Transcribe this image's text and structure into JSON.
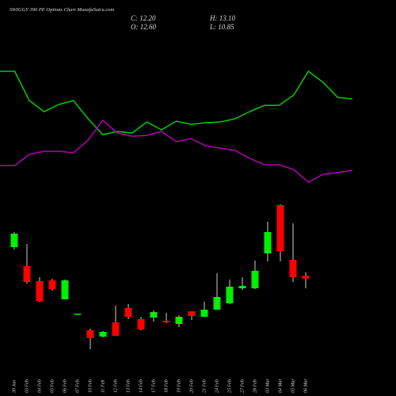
{
  "chart_data": [
    {
      "type": "candlestick",
      "title": "SWIGGY 390 PE Options Chart MunafaSutra.com",
      "ohlc_text": [
        "C: 12.20",
        "H: 13.10",
        "O: 12.60",
        "L: 10.85"
      ],
      "categories": [
        "30 Jan",
        "03 Feb",
        "04 Feb",
        "05 Feb",
        "06 Feb",
        "07 Feb",
        "10 Feb",
        "11 Feb",
        "12 Feb",
        "13 Feb",
        "14 Feb",
        "17 Feb",
        "18 Feb",
        "19 Feb",
        "20 Feb",
        "21 Feb",
        "24 Feb",
        "25 Feb",
        "27 Feb",
        "28 Feb",
        "03 Mar",
        "04 Mar",
        "05 Mar",
        "06 Mar"
      ],
      "open": [
        16.58,
        13.94,
        11.85,
        11.96,
        9.32,
        7.23,
        5.03,
        4.15,
        6.13,
        8.11,
        6.57,
        6.79,
        6.35,
        5.91,
        7.67,
        6.9,
        7.89,
        8.77,
        10.86,
        10.86,
        15.7,
        22.41,
        14.82,
        12.6
      ],
      "high": [
        18.67,
        17.02,
        12.4,
        12.18,
        12.07,
        7.34,
        5.25,
        4.92,
        8.44,
        8.66,
        6.9,
        7.78,
        7.45,
        7.12,
        7.67,
        8.99,
        12.95,
        12.07,
        12.4,
        14.71,
        20.1,
        22.52,
        19.88,
        13.1
      ],
      "low": [
        16.25,
        11.52,
        8.99,
        10.53,
        9.32,
        7.23,
        2.39,
        4.04,
        4.26,
        6.57,
        5.03,
        6.24,
        6.02,
        5.47,
        6.46,
        6.9,
        7.89,
        8.66,
        10.64,
        10.75,
        14.6,
        14.6,
        11.74,
        10.85
      ],
      "close": [
        18.45,
        11.74,
        9.1,
        10.75,
        11.96,
        7.34,
        3.93,
        4.81,
        4.26,
        6.9,
        5.14,
        7.56,
        6.13,
        6.9,
        7.01,
        7.89,
        9.65,
        11.08,
        11.19,
        13.28,
        18.67,
        16.03,
        12.4,
        12.2
      ],
      "up_color": "#00ee00",
      "down_color": "#ff0000",
      "ylim": [
        1.4,
        23.95
      ]
    },
    {
      "type": "line",
      "series": [
        {
          "color": "#00cc00",
          "values": [
            160,
            160,
            123,
            109,
            118,
            123,
            100,
            80,
            84,
            82,
            96,
            86,
            97,
            93,
            95,
            96,
            100,
            109,
            117,
            117,
            130,
            160,
            146,
            127,
            125
          ]
        },
        {
          "color": "#b000b0",
          "values": [
            41,
            41,
            55,
            59,
            59,
            57,
            73,
            98,
            82,
            78,
            79,
            84,
            71,
            75,
            66,
            63,
            60,
            50,
            42,
            42,
            36,
            20,
            30,
            32,
            35
          ]
        }
      ],
      "ylim": [
        0,
        170
      ]
    }
  ]
}
